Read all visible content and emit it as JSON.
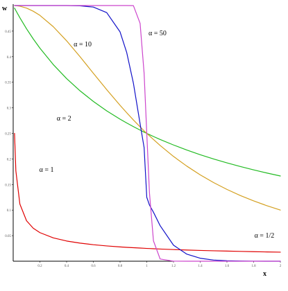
{
  "chart_data": {
    "type": "line",
    "title": "",
    "xlabel": "x",
    "ylabel": "w",
    "xlim": [
      0,
      2
    ],
    "ylim": [
      0,
      0.5
    ],
    "grid": false,
    "x_ticks": [
      {
        "value": 0.2,
        "label": "0.2"
      },
      {
        "value": 0.4,
        "label": "0.4"
      },
      {
        "value": 0.6,
        "label": "0.6"
      },
      {
        "value": 0.8,
        "label": "0.8"
      },
      {
        "value": 1.0,
        "label": "1"
      },
      {
        "value": 1.2,
        "label": "1.2"
      },
      {
        "value": 1.4,
        "label": "1.4"
      },
      {
        "value": 1.6,
        "label": "1.6"
      },
      {
        "value": 1.8,
        "label": "1.8"
      },
      {
        "value": 2.0,
        "label": "2"
      }
    ],
    "y_ticks": [
      {
        "value": 0.05,
        "label": "0.05"
      },
      {
        "value": 0.1,
        "label": "0.1"
      },
      {
        "value": 0.15,
        "label": "0.15"
      },
      {
        "value": 0.2,
        "label": "0.2"
      },
      {
        "value": 0.25,
        "label": "0.25"
      },
      {
        "value": 0.3,
        "label": "0.3"
      },
      {
        "value": 0.35,
        "label": "0.35"
      },
      {
        "value": 0.4,
        "label": "0.4"
      },
      {
        "value": 0.45,
        "label": "0.45"
      }
    ],
    "x": [
      0.01,
      0.02,
      0.05,
      0.1,
      0.15,
      0.2,
      0.3,
      0.4,
      0.5,
      0.6,
      0.7,
      0.8,
      0.85,
      0.9,
      0.95,
      0.98,
      1.0,
      1.02,
      1.05,
      1.1,
      1.2,
      1.3,
      1.4,
      1.5,
      1.6,
      1.7,
      1.8,
      1.9,
      2.0
    ],
    "series": [
      {
        "name": "α = 1/2",
        "color": "#e00000",
        "values": [
          0.25,
          0.1768,
          0.1118,
          0.0791,
          0.0645,
          0.0559,
          0.0456,
          0.0395,
          0.0354,
          0.0323,
          0.0299,
          0.028,
          0.0271,
          0.0264,
          0.0257,
          0.0253,
          0.025,
          0.0248,
          0.0244,
          0.0238,
          0.0228,
          0.0219,
          0.0211,
          0.0204,
          0.0198,
          0.0192,
          0.0186,
          0.0181,
          0.0177
        ]
      },
      {
        "name": "α = 1",
        "color": "#22bb22",
        "values": [
          0.495,
          0.4902,
          0.4762,
          0.4545,
          0.4348,
          0.4167,
          0.3846,
          0.3571,
          0.3333,
          0.3125,
          0.2941,
          0.2778,
          0.2703,
          0.2632,
          0.2564,
          0.2525,
          0.25,
          0.2475,
          0.2439,
          0.2381,
          0.2273,
          0.2174,
          0.2083,
          0.2,
          0.1923,
          0.1852,
          0.1786,
          0.1724,
          0.1667
        ]
      },
      {
        "name": "α = 2",
        "color": "#d4a020",
        "values": [
          0.5,
          0.4998,
          0.4988,
          0.495,
          0.4889,
          0.4808,
          0.4587,
          0.431,
          0.4,
          0.3676,
          0.3356,
          0.3049,
          0.2903,
          0.2762,
          0.2628,
          0.2549,
          0.25,
          0.2451,
          0.238,
          0.2264,
          0.2049,
          0.1859,
          0.1689,
          0.1538,
          0.1404,
          0.1285,
          0.1179,
          0.1085,
          0.1
        ]
      },
      {
        "name": "α = 10",
        "color": "#1010c8",
        "values": [
          0.5,
          0.5,
          0.5,
          0.5,
          0.5,
          0.5,
          0.5,
          0.5,
          0.4995,
          0.497,
          0.4862,
          0.4485,
          0.4079,
          0.348,
          0.2688,
          0.2223,
          0.125,
          0.1099,
          0.0958,
          0.0695,
          0.0313,
          0.0138,
          0.0058,
          0.0023,
          0.0009,
          0.0003,
          0.0001,
          0.0,
          0.0
        ]
      },
      {
        "name": "α = 50",
        "color": "#cc44cc",
        "values": [
          0.5,
          0.5,
          0.5,
          0.5,
          0.5,
          0.5,
          0.5,
          0.5,
          0.5,
          0.5,
          0.5,
          0.5,
          0.5,
          0.4998,
          0.4652,
          0.3678,
          0.25,
          0.1341,
          0.0398,
          0.0043,
          0.0001,
          0.0,
          0.0,
          0.0,
          0.0,
          0.0,
          0.0,
          0.0,
          0.0
        ]
      }
    ],
    "annotations": [
      {
        "series": "α = 1/2",
        "text": "α = 1/2",
        "x": 1.88,
        "y": 0.046
      },
      {
        "series": "α = 1",
        "text": "α = 1",
        "x": 0.25,
        "y": 0.175
      },
      {
        "series": "α = 2",
        "text": "α = 2",
        "x": 0.38,
        "y": 0.275
      },
      {
        "series": "α = 10",
        "text": "α = 10",
        "x": 0.52,
        "y": 0.42
      },
      {
        "series": "α = 50",
        "text": "α = 50",
        "x": 1.08,
        "y": 0.442
      }
    ]
  }
}
